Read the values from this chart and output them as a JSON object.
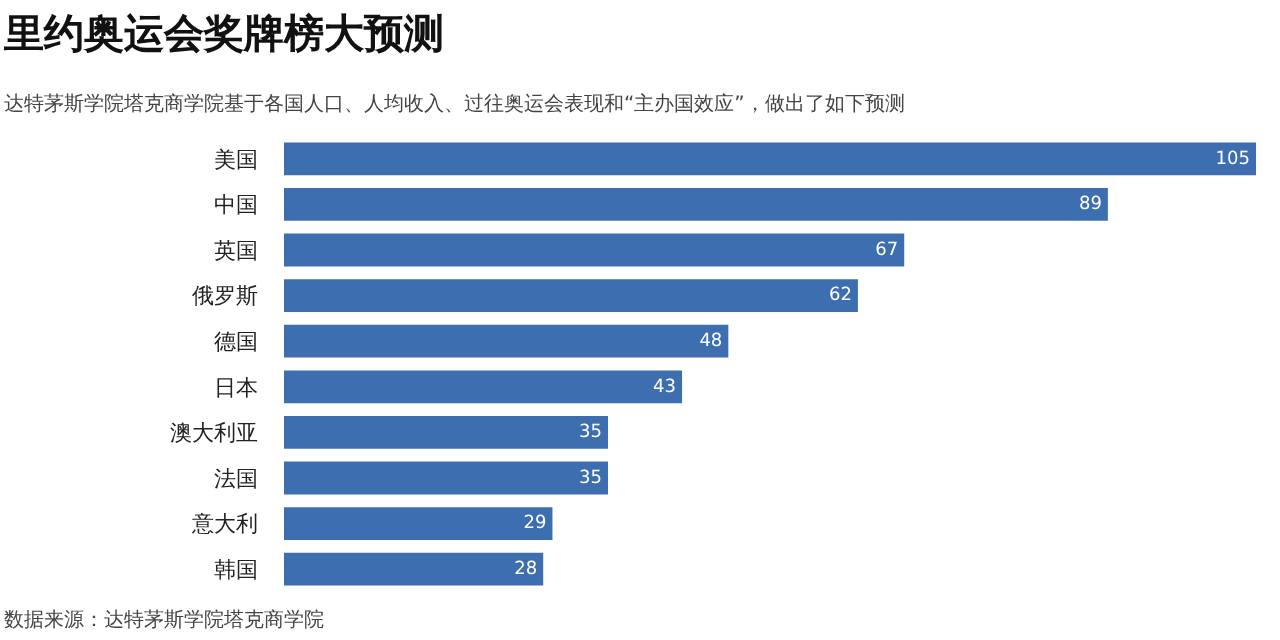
{
  "chart_data": {
    "type": "bar",
    "orientation": "horizontal",
    "title": "里约奥运会奖牌榜大预测",
    "subtitle": "达特茅斯学院塔克商学院基于各国人口、人均收入、过往奥运会表现和“主办国效应”，做出了如下预测",
    "categories": [
      "美国",
      "中国",
      "英国",
      "俄罗斯",
      "德国",
      "日本",
      "澳大利亚",
      "法国",
      "意大利",
      "韩国"
    ],
    "values": [
      105,
      89,
      67,
      62,
      48,
      43,
      35,
      35,
      29,
      28
    ],
    "color": "#3d6eb0",
    "data_labels": true,
    "tick_labels": "y",
    "annotations": [
      "数据来源：达特茅斯学院塔克商学院"
    ]
  }
}
